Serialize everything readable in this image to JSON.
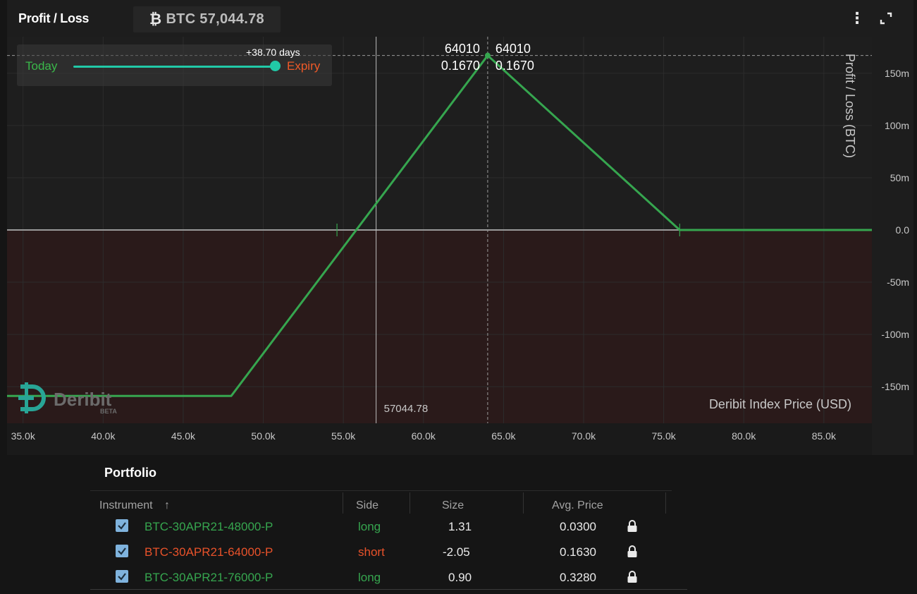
{
  "header": {
    "title": "Profit / Loss",
    "btc_symbol": "₿",
    "btc_price": "BTC 57,044.78",
    "menu_icon": "⋮"
  },
  "slider": {
    "days": "+38.70 days",
    "today": "Today",
    "expiry": "Expiry",
    "position": 1.0
  },
  "chart_data": {
    "type": "line",
    "ylabel": "Profit / Loss (BTC)",
    "xlabel": "Deribit Index Price (USD)",
    "x": [
      34000,
      48000,
      64010,
      76000,
      88000
    ],
    "y": [
      -0.1588,
      -0.1588,
      0.167,
      0.0,
      0.0
    ],
    "xlim": [
      34000,
      88000
    ],
    "ylim": [
      -0.185,
      0.185
    ],
    "x_ticks": [
      35000,
      40000,
      45000,
      50000,
      55000,
      60000,
      65000,
      70000,
      75000,
      80000,
      85000
    ],
    "x_tick_labels": [
      "35.0k",
      "40.0k",
      "45.0k",
      "50.0k",
      "55.0k",
      "60.0k",
      "65.0k",
      "70.0k",
      "75.0k",
      "80.0k",
      "85.0k"
    ],
    "y_ticks": [
      0.15,
      0.1,
      0.05,
      0.0,
      -0.05,
      -0.1,
      -0.15
    ],
    "y_tick_labels": [
      "150m",
      "100m",
      "50m",
      "0.0",
      "-50m",
      "-100m",
      "-150m"
    ],
    "current_price": 57044.78,
    "current_price_label": "57044.78",
    "hover": {
      "x": 64010,
      "y": 0.167,
      "x_label": "64010",
      "y_label": "0.1670"
    },
    "breakevens": [
      54600,
      76000
    ],
    "colors": {
      "line": "#36a64f",
      "loss_fill": "#2a1a1a",
      "zero_line": "#9a9a9a"
    }
  },
  "watermark": {
    "brand": "Deribit",
    "badge": "BETA"
  },
  "portfolio": {
    "title": "Portfolio",
    "columns": {
      "instrument": "Instrument",
      "sort_icon": "↑",
      "side": "Side",
      "size": "Size",
      "avg_price": "Avg. Price"
    },
    "rows": [
      {
        "instrument": "BTC-30APR21-48000-P",
        "side": "long",
        "size": "1.31",
        "avg_price": "0.0300",
        "color": "green",
        "checked": true
      },
      {
        "instrument": "BTC-30APR21-64000-P",
        "side": "short",
        "size": "-2.05",
        "avg_price": "0.1630",
        "color": "red",
        "checked": true
      },
      {
        "instrument": "BTC-30APR21-76000-P",
        "side": "long",
        "size": "0.90",
        "avg_price": "0.3280",
        "color": "green",
        "checked": true
      }
    ]
  }
}
